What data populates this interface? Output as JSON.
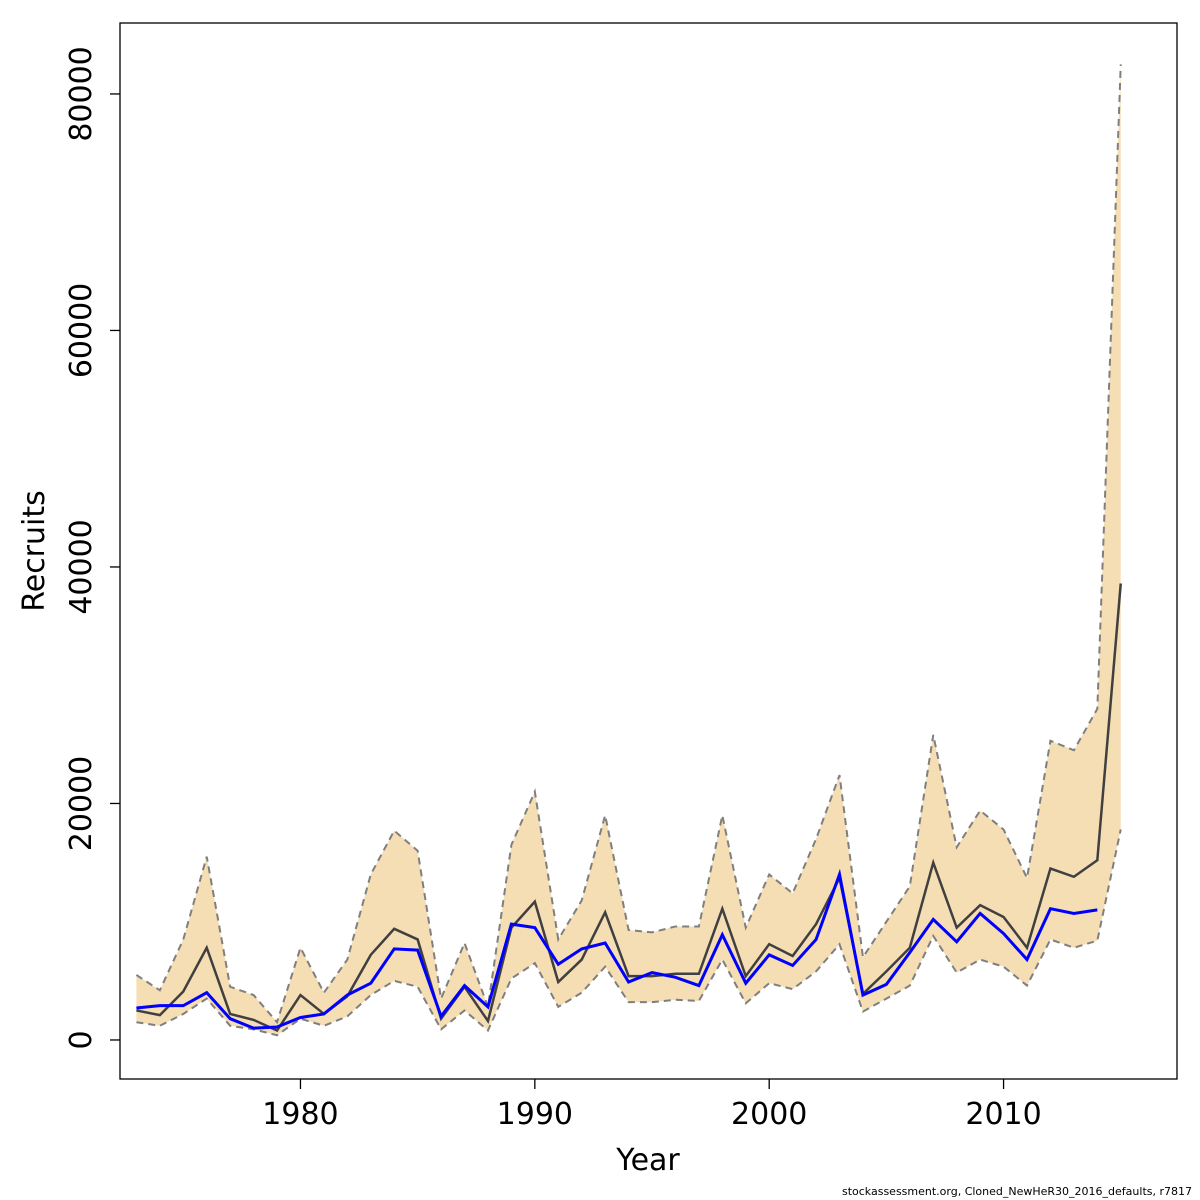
{
  "chart_data": {
    "type": "line",
    "xlabel": "Year",
    "ylabel": "Recruits",
    "xlim": [
      1972.3,
      2017.4
    ],
    "ylim": [
      -3300,
      86000
    ],
    "x_ticks": [
      1980,
      1990,
      2000,
      2010
    ],
    "y_ticks": [
      0,
      20000,
      40000,
      60000,
      80000
    ],
    "colors": {
      "band_fill": "#f5deb3",
      "band_edge": "#7f7f7f",
      "estimate": "#404040",
      "observed": "#0000ff"
    },
    "years": [
      1973,
      1974,
      1975,
      1976,
      1977,
      1978,
      1979,
      1980,
      1981,
      1982,
      1983,
      1984,
      1985,
      1986,
      1987,
      1988,
      1989,
      1990,
      1991,
      1992,
      1993,
      1994,
      1995,
      1996,
      1997,
      1998,
      1999,
      2000,
      2001,
      2002,
      2003,
      2004,
      2005,
      2006,
      2007,
      2008,
      2009,
      2010,
      2011,
      2012,
      2013,
      2014,
      2015
    ],
    "series": [
      {
        "role": "upper-ci",
        "values": [
          5500,
          4200,
          8500,
          15500,
          4500,
          3800,
          1500,
          7800,
          4000,
          6800,
          14000,
          17700,
          16000,
          3500,
          8200,
          2800,
          16500,
          21000,
          8500,
          11800,
          19000,
          9300,
          9100,
          9600,
          9600,
          19000,
          9500,
          14000,
          12400,
          17000,
          22400,
          7000,
          10000,
          13000,
          25800,
          16300,
          19400,
          17800,
          13700,
          25300,
          24500,
          28000,
          82500
        ]
      },
      {
        "role": "lower-ci",
        "values": [
          1500,
          1200,
          2200,
          3500,
          1200,
          900,
          400,
          1800,
          1200,
          2000,
          3800,
          5000,
          4500,
          900,
          2500,
          800,
          5200,
          6500,
          2800,
          4000,
          6200,
          3200,
          3200,
          3400,
          3300,
          6800,
          3100,
          4800,
          4300,
          5800,
          8100,
          2400,
          3500,
          4600,
          8800,
          5700,
          6800,
          6200,
          4600,
          8500,
          7800,
          8400,
          17800
        ]
      },
      {
        "role": "estimate",
        "values": [
          2500,
          2100,
          4100,
          7800,
          2200,
          1700,
          800,
          3800,
          2200,
          3700,
          7200,
          9400,
          8500,
          1800,
          4500,
          1600,
          9500,
          11700,
          4900,
          6800,
          10800,
          5400,
          5400,
          5600,
          5600,
          11100,
          5400,
          8100,
          7100,
          9800,
          13700,
          3900,
          5800,
          7800,
          15000,
          9500,
          11400,
          10400,
          7800,
          14500,
          13800,
          15200,
          38600
        ]
      },
      {
        "role": "observed",
        "values": [
          2700,
          2900,
          2900,
          4000,
          1800,
          1000,
          1100,
          1900,
          2200,
          3800,
          4800,
          7700,
          7600,
          2000,
          4600,
          2800,
          9800,
          9500,
          6400,
          7700,
          8200,
          4900,
          5700,
          5300,
          4600,
          8900,
          4800,
          7200,
          6300,
          8500,
          14000,
          3800,
          4700,
          7400,
          10200,
          8300,
          10700,
          9000,
          6800,
          11100,
          10700,
          11000,
          null
        ]
      }
    ]
  },
  "footer": {
    "source_note": "stockassessment.org, Cloned_NewHeR30_2016_defaults, r7817"
  }
}
